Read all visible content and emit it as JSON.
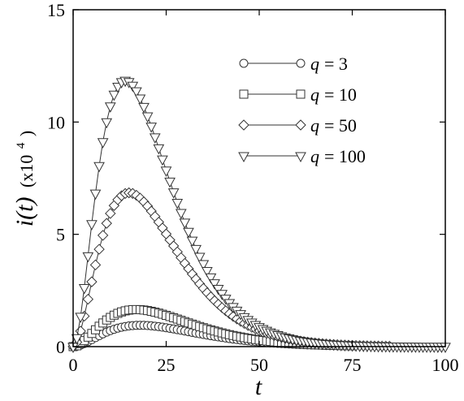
{
  "chart_data": {
    "type": "line",
    "xlabel": "t",
    "ylabel_italic": "i(t)",
    "ylabel_rest": "(x10",
    "ylabel_exp": "4",
    "ylabel_close": ")",
    "xlim": [
      0,
      100
    ],
    "ylim": [
      0,
      15
    ],
    "xticks": [
      0,
      25,
      50,
      75,
      100
    ],
    "yticks": [
      0,
      5,
      10,
      15
    ],
    "grid": false,
    "legend_position": "top-right",
    "series": [
      {
        "name": "q = 3",
        "q_label": "q",
        "q_value": "= 3",
        "marker": "circle",
        "peak": 0.95,
        "tpeak": 18,
        "tail": 70
      },
      {
        "name": "q = 10",
        "q_label": "q",
        "q_value": "= 10",
        "marker": "square",
        "peak": 1.65,
        "tpeak": 17,
        "tail": 75
      },
      {
        "name": "q = 50",
        "q_label": "q",
        "q_value": "= 50",
        "marker": "diamond",
        "peak": 6.85,
        "tpeak": 15,
        "tail": 85
      },
      {
        "name": "q = 100",
        "q_label": "q",
        "q_value": "= 100",
        "marker": "triangle-down",
        "peak": 11.85,
        "tpeak": 14,
        "tail": 100
      }
    ]
  }
}
